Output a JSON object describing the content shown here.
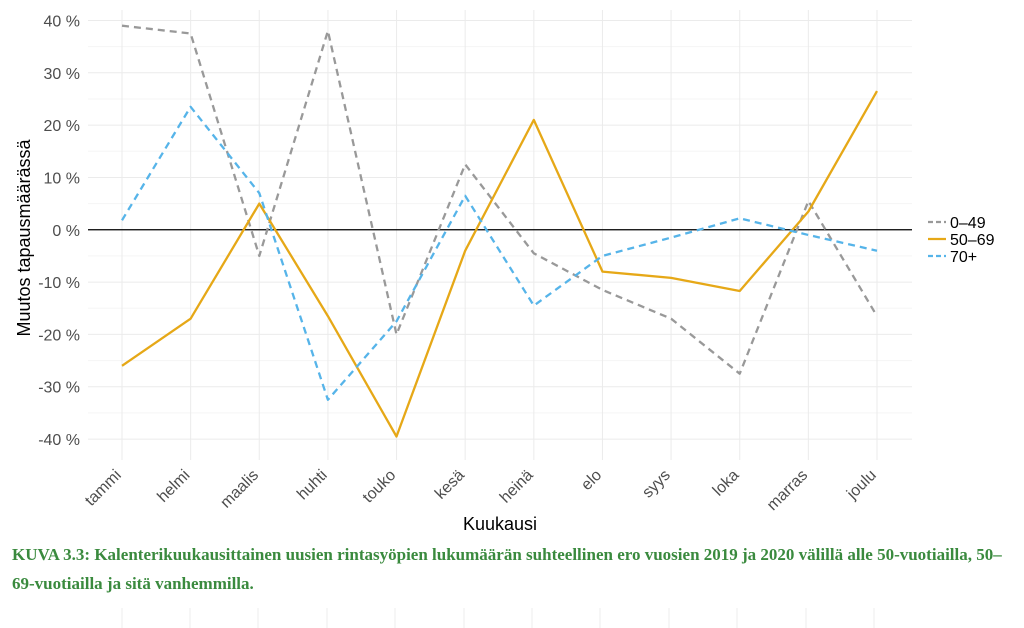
{
  "chart_data": {
    "type": "line",
    "title": "",
    "xlabel": "Kuukausi",
    "ylabel": "Muutos tapausmäärässä",
    "categories": [
      "tammi",
      "helmi",
      "maalis",
      "huhti",
      "touko",
      "kesä",
      "heinä",
      "elo",
      "syys",
      "loka",
      "marras",
      "joulu"
    ],
    "ylim": [
      -44,
      42
    ],
    "yticks": [
      -40,
      -30,
      -20,
      -10,
      0,
      10,
      20,
      30,
      40
    ],
    "ytick_labels": [
      "-40 %",
      "-30 %",
      "-20 %",
      "-10 %",
      "0 %",
      "10 %",
      "20 %",
      "30 %",
      "40 %"
    ],
    "grid": true,
    "zero_line": true,
    "legend_position": "right",
    "series": [
      {
        "name": "0–49",
        "color": "#999999",
        "dash": "dashed",
        "values": [
          39,
          37.5,
          -5,
          38,
          -20,
          12.5,
          -4.5,
          -11.5,
          -17,
          -27.5,
          5.5,
          -16.5
        ]
      },
      {
        "name": "50–69",
        "color": "#E6A817",
        "dash": "solid",
        "values": [
          -26,
          -17,
          5,
          -16.5,
          -39.5,
          -4,
          21,
          -8,
          -9.2,
          -11.7,
          3.5,
          26.5
        ]
      },
      {
        "name": "70+",
        "color": "#56B4E9",
        "dash": "dashed",
        "values": [
          1.8,
          23.5,
          7,
          -32.5,
          -17.5,
          6.5,
          -14.5,
          -5,
          -1.5,
          2.2,
          -1,
          -4
        ]
      }
    ]
  },
  "caption": "KUVA 3.3: Kalenterikuukausittainen uusien rintasyöpien lukumäärän suhteellinen ero vuosien 2019 ja 2020 välillä alle 50-vuotiailla, 50–69-vuotiailla ja sitä vanhemmilla."
}
